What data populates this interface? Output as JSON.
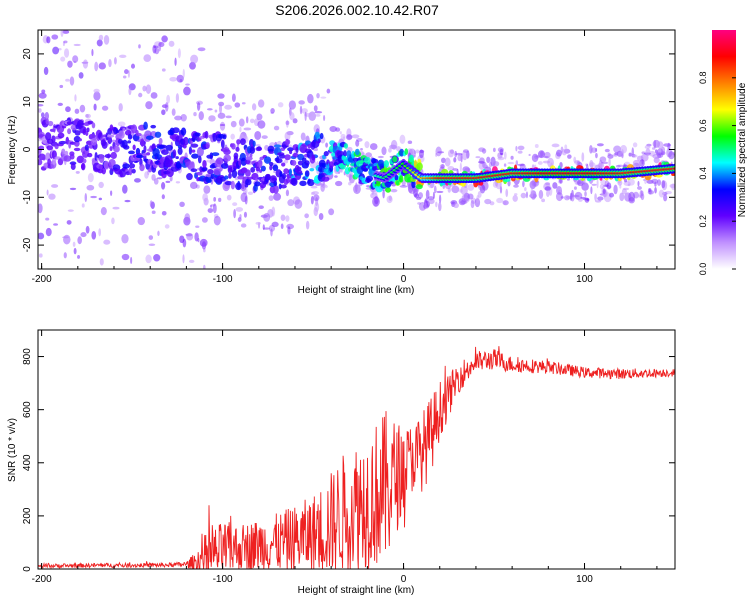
{
  "title": "S206.2026.002.10.42.R07",
  "chart_data": [
    {
      "type": "heatmap",
      "title": "S206.2026.002.10.42.R07",
      "xlabel": "Height of straight line (km)",
      "ylabel": "Frequency (Hz)",
      "xlim": [
        -202,
        150
      ],
      "ylim": [
        -25,
        25
      ],
      "xticks": [
        "-200",
        "-100",
        "0",
        "100"
      ],
      "xtick_values": [
        -200,
        -100,
        0,
        100
      ],
      "yticks": [
        "-20",
        "-10",
        "0",
        "10",
        "20"
      ],
      "ytick_values": [
        -20,
        -10,
        0,
        10,
        20
      ],
      "colorbar": {
        "label": "Normalized spectral amplitude",
        "range": [
          0,
          1
        ],
        "ticks": [
          "0.0",
          "0.2",
          "0.4",
          "0.6",
          "0.8"
        ],
        "tick_values": [
          0.0,
          0.2,
          0.4,
          0.6,
          0.8
        ],
        "colors": [
          "#ffffff",
          "#c090ff",
          "#6000ff",
          "#0000ff",
          "#00ffff",
          "#00ff00",
          "#ffff00",
          "#ff8000",
          "#ff0000",
          "#ff0080"
        ]
      },
      "ridge": {
        "x": [
          -200,
          -180,
          -160,
          -140,
          -120,
          -100,
          -80,
          -60,
          -40,
          -30,
          -20,
          -10,
          0,
          10,
          20,
          40,
          60,
          80,
          100,
          120,
          150
        ],
        "frequency": [
          1,
          1,
          0,
          0,
          -1,
          -2,
          -4,
          -3,
          -1,
          -2,
          -5,
          -6,
          -3,
          -6,
          -6,
          -6,
          -5,
          -5,
          -5,
          -5,
          -4
        ],
        "amplitude": [
          0.2,
          0.25,
          0.25,
          0.3,
          0.3,
          0.3,
          0.3,
          0.35,
          0.4,
          0.45,
          0.45,
          0.5,
          0.55,
          0.7,
          0.85,
          0.85,
          0.85,
          0.9,
          0.9,
          0.85,
          0.85
        ]
      }
    },
    {
      "type": "line",
      "xlabel": "Height of straight line (km)",
      "ylabel": "SNR (10 * v/v)",
      "xlim": [
        -202,
        150
      ],
      "ylim": [
        0,
        900
      ],
      "xticks": [
        "-200",
        "-100",
        "0",
        "100"
      ],
      "xtick_values": [
        -200,
        -100,
        0,
        100
      ],
      "yticks": [
        "0",
        "200",
        "400",
        "600",
        "800"
      ],
      "ytick_values": [
        0,
        200,
        400,
        600,
        800
      ],
      "color": "#ee2020",
      "envelope": {
        "x": [
          -202,
          -190,
          -170,
          -150,
          -130,
          -120,
          -115,
          -110,
          -100,
          -90,
          -80,
          -70,
          -60,
          -50,
          -40,
          -30,
          -20,
          -10,
          0,
          5,
          10,
          15,
          20,
          25,
          30,
          40,
          50,
          60,
          80,
          100,
          120,
          150
        ],
        "base": [
          12,
          12,
          14,
          14,
          15,
          18,
          25,
          40,
          70,
          80,
          90,
          100,
          110,
          130,
          170,
          230,
          260,
          300,
          380,
          420,
          440,
          500,
          600,
          650,
          720,
          780,
          790,
          770,
          760,
          740,
          735,
          740
        ],
        "spread": [
          8,
          8,
          8,
          8,
          8,
          10,
          40,
          90,
          110,
          90,
          100,
          110,
          130,
          150,
          200,
          240,
          260,
          300,
          160,
          130,
          150,
          150,
          110,
          80,
          60,
          40,
          40,
          30,
          25,
          20,
          20,
          15
        ]
      }
    }
  ]
}
